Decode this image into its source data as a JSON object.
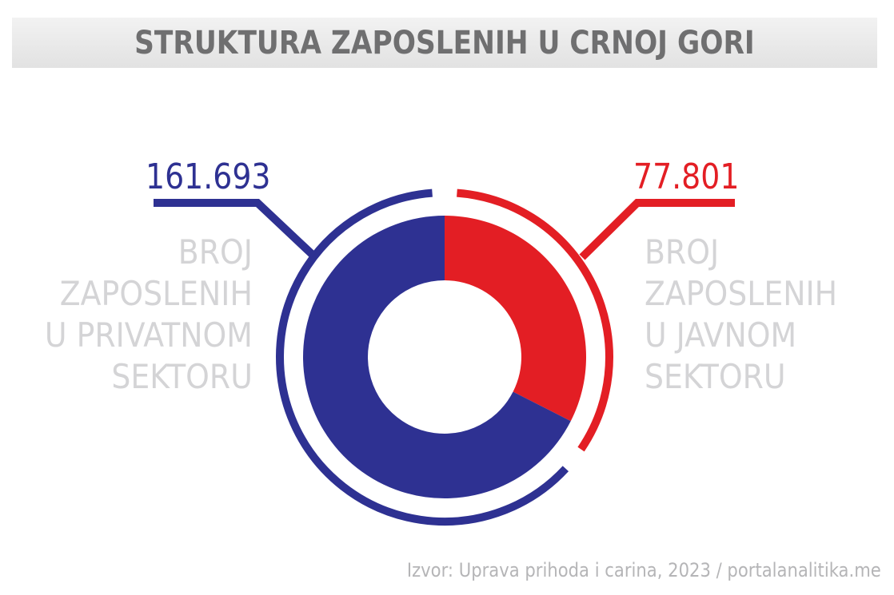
{
  "title": "STRUKTURA ZAPOSLENIH U CRNOJ GORI",
  "left": {
    "value": "161.693",
    "label_lines": [
      "BROJ",
      "ZAPOSLENIH",
      "U PRIVATNOM",
      "SEKTORU"
    ],
    "color": "#2e3192"
  },
  "right": {
    "value": "77.801",
    "label_lines": [
      "BROJ",
      "ZAPOSLENIH",
      "U JAVNOM",
      "SEKTORU"
    ],
    "color": "#e31e24"
  },
  "source": "Izvor: Uprava prihoda i carina, 2023 / portalanalitika.me",
  "chart_data": {
    "type": "pie",
    "subtype": "donut",
    "title": "STRUKTURA ZAPOSLENIH U CRNOJ GORI",
    "categories": [
      "Broj zaposlenih u privatnom sektoru",
      "Broj zaposlenih u javnom sektoru"
    ],
    "values": [
      161693,
      77801
    ],
    "colors": [
      "#2e3192",
      "#e31e24"
    ],
    "value_labels": [
      "161.693",
      "77.801"
    ],
    "source": "Izvor: Uprava prihoda i carina, 2023 / portalanalitika.me",
    "legend_position": "side labels"
  }
}
